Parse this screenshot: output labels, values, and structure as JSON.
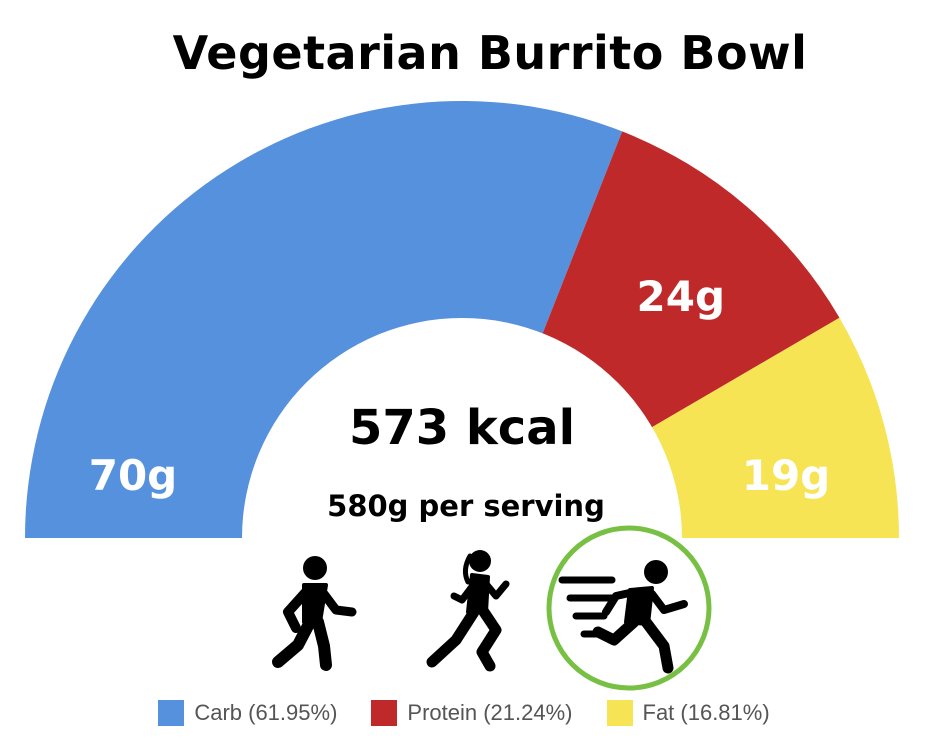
{
  "chart_data": {
    "type": "pie",
    "title": "Vegetarian Burrito Bowl",
    "center_kcal": "573 kcal",
    "center_serving": "580g per serving",
    "slices": [
      {
        "name": "Carb",
        "grams": 70,
        "label": "70g",
        "percent": 61.95,
        "legend": "Carb (61.95%)",
        "color": "#5591dc"
      },
      {
        "name": "Protein",
        "grams": 24,
        "label": "24g",
        "percent": 21.24,
        "legend": "Protein (21.24%)",
        "color": "#c0292a"
      },
      {
        "name": "Fat",
        "grams": 19,
        "label": "19g",
        "percent": 16.81,
        "legend": "Fat (16.81%)",
        "color": "#f6e455"
      }
    ]
  },
  "activity_icons": [
    "walking-icon",
    "jogging-icon",
    "running-icon"
  ],
  "highlight_ring_color": "#77c043"
}
